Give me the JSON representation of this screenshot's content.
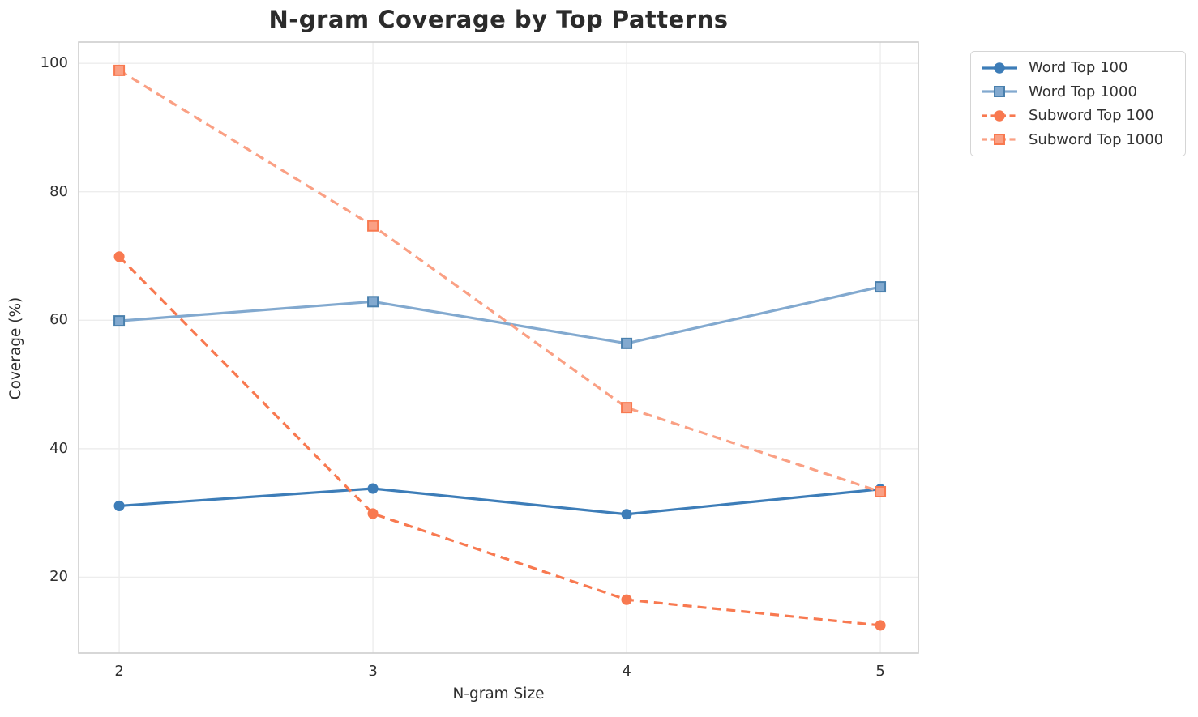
{
  "figure": {
    "background": "#ffffff"
  },
  "chart_data": {
    "type": "line",
    "title": "N-gram Coverage by Top Patterns",
    "xlabel": "N-gram Size",
    "ylabel": "Coverage (%)",
    "x": [
      2,
      3,
      4,
      5
    ],
    "xticks": [
      "2",
      "3",
      "4",
      "5"
    ],
    "yticks": [
      "20",
      "40",
      "60",
      "80",
      "100"
    ],
    "ytick_values": [
      20,
      40,
      60,
      80,
      100
    ],
    "xlim": [
      1.84,
      5.15
    ],
    "ylim": [
      8.2,
      103.3
    ],
    "grid": true,
    "grid_color": "#ededed",
    "spine_color": "#cdcdcd",
    "legend_position": "outside-upper-right",
    "series": [
      {
        "name": "Word Top 100",
        "values": [
          31.1,
          33.8,
          29.8,
          33.7
        ],
        "color": "#3d7db8",
        "edge_color": "#3d7db8",
        "marker": "circle",
        "line_style": "solid"
      },
      {
        "name": "Word Top 1000",
        "values": [
          59.9,
          62.9,
          56.4,
          65.2
        ],
        "color": "#82a9cf",
        "edge_color": "#4a80ad",
        "marker": "square",
        "line_style": "solid"
      },
      {
        "name": "Subword Top 100",
        "values": [
          69.9,
          29.9,
          16.5,
          12.5
        ],
        "color": "#f87950",
        "edge_color": "#f87950",
        "marker": "circle",
        "line_style": "dashed"
      },
      {
        "name": "Subword Top 1000",
        "values": [
          98.9,
          74.7,
          46.4,
          33.3
        ],
        "color": "#faa084",
        "edge_color": "#f87950",
        "marker": "square",
        "line_style": "dashed"
      }
    ]
  }
}
